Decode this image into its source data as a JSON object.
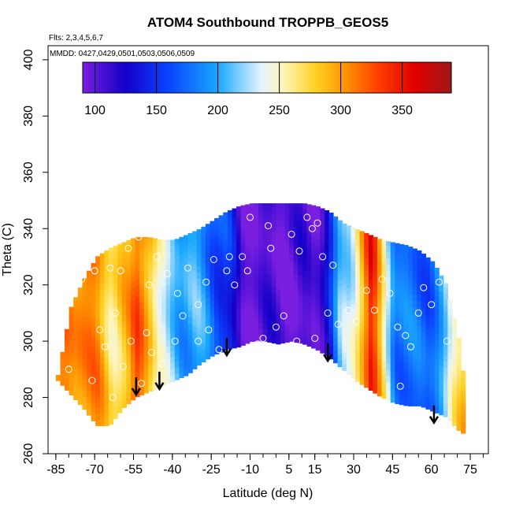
{
  "chart_data": {
    "type": "heatmap",
    "title": "ATOM4 Southbound TROPPB_GEOS5",
    "flights_note": "Flts: 2,3,4,5,6,7",
    "dates_note": "MMDD: 0427,0429,0501,0503,0506,0509",
    "xlabel": "Latitude (deg N)",
    "ylabel": "Theta (C)",
    "xlim": [
      -88,
      82
    ],
    "ylim": [
      260,
      405
    ],
    "x_ticks": [
      -85,
      -70,
      -55,
      -40,
      -25,
      -10,
      5,
      15,
      30,
      45,
      60,
      75
    ],
    "y_ticks": [
      260,
      280,
      300,
      320,
      340,
      360,
      380,
      400
    ],
    "colorbar": {
      "range": [
        90,
        390
      ],
      "ticks": [
        100,
        150,
        200,
        250,
        300,
        350
      ],
      "colors": [
        "#7a1fe0",
        "#1400c8",
        "#0a44ff",
        "#1aa8ff",
        "#e4f4ff",
        "#fff4b0",
        "#ffd020",
        "#ff9000",
        "#ff4000",
        "#e00000",
        "#a01818"
      ],
      "stops": [
        90,
        125,
        160,
        200,
        235,
        255,
        280,
        305,
        330,
        360,
        390
      ]
    },
    "arrows": [
      {
        "lat": -54,
        "theta": 281
      },
      {
        "lat": -45,
        "theta": 283
      },
      {
        "lat": -19,
        "theta": 295
      },
      {
        "lat": 20,
        "theta": 293
      },
      {
        "lat": 61,
        "theta": 271
      }
    ],
    "field_profile": {
      "lats": [
        -88,
        -82,
        -76,
        -70,
        -64,
        -58,
        -54,
        -50,
        -46,
        -42,
        -38,
        -32,
        -26,
        -20,
        -14,
        0,
        14,
        20,
        24,
        28,
        32,
        36,
        40,
        45,
        52,
        58,
        64,
        68,
        72,
        82
      ],
      "values": [
        300,
        310,
        315,
        300,
        270,
        285,
        330,
        300,
        240,
        215,
        205,
        200,
        180,
        150,
        100,
        100,
        100,
        145,
        205,
        230,
        290,
        345,
        270,
        190,
        170,
        175,
        200,
        250,
        300,
        300
      ]
    },
    "domain_shape": {
      "lats": [
        -85,
        -80,
        -75,
        -70,
        -65,
        -60,
        -55,
        -50,
        -45,
        -40,
        -35,
        -30,
        -25,
        -20,
        -15,
        -10,
        -5,
        0,
        5,
        10,
        15,
        20,
        25,
        30,
        35,
        40,
        45,
        50,
        55,
        60,
        65,
        70,
        72
      ],
      "top": [
        288,
        312,
        322,
        330,
        333,
        335,
        337,
        337,
        336,
        336,
        338,
        340,
        343,
        346,
        348,
        349,
        349,
        349,
        349,
        349,
        348,
        346,
        342,
        340,
        338,
        336,
        335,
        334,
        332,
        328,
        320,
        300,
        285
      ],
      "bottom": [
        286,
        281,
        276,
        270,
        270,
        276,
        280,
        282,
        284,
        286,
        288,
        292,
        295,
        297,
        298,
        300,
        300,
        299,
        300,
        299,
        297,
        294,
        290,
        286,
        283,
        280,
        278,
        277,
        277,
        275,
        273,
        268,
        267
      ]
    },
    "points": [
      [
        -75,
        322
      ],
      [
        -70,
        325
      ],
      [
        -68,
        304
      ],
      [
        -64,
        326
      ],
      [
        -60,
        325
      ],
      [
        -57,
        333
      ],
      [
        -53,
        337
      ],
      [
        -49,
        320
      ],
      [
        -46,
        330
      ],
      [
        -50,
        303
      ],
      [
        -42,
        324
      ],
      [
        -38,
        317
      ],
      [
        -34,
        326
      ],
      [
        -30,
        313
      ],
      [
        -27,
        321
      ],
      [
        -24,
        329
      ],
      [
        -19,
        325
      ],
      [
        -16,
        320
      ],
      [
        -13,
        330
      ],
      [
        -10,
        344
      ],
      [
        -5,
        301
      ],
      [
        -2,
        333
      ],
      [
        0,
        305
      ],
      [
        3,
        309
      ],
      [
        6,
        338
      ],
      [
        9,
        332
      ],
      [
        12,
        344
      ],
      [
        14,
        340
      ],
      [
        16,
        342
      ],
      [
        18,
        330
      ],
      [
        20,
        310
      ],
      [
        22,
        327
      ],
      [
        -62,
        310
      ],
      [
        -66,
        298
      ],
      [
        -59,
        291
      ],
      [
        -56,
        300
      ],
      [
        -44,
        292
      ],
      [
        -39,
        300
      ],
      [
        -30,
        300
      ],
      [
        -22,
        297
      ],
      [
        -7,
        299
      ],
      [
        -3,
        341
      ],
      [
        8,
        300
      ],
      [
        15,
        301
      ],
      [
        24,
        306
      ],
      [
        28,
        311
      ],
      [
        31,
        307
      ],
      [
        35,
        318
      ],
      [
        38,
        311
      ],
      [
        41,
        322
      ],
      [
        44,
        317
      ],
      [
        47,
        305
      ],
      [
        50,
        302
      ],
      [
        52,
        298
      ],
      [
        55,
        310
      ],
      [
        57,
        319
      ],
      [
        60,
        313
      ],
      [
        63,
        321
      ],
      [
        66,
        300
      ],
      [
        48,
        284
      ],
      [
        -80,
        290
      ],
      [
        -71,
        286
      ],
      [
        -63,
        280
      ],
      [
        -58,
        275
      ],
      [
        -52,
        285
      ],
      [
        -48,
        296
      ],
      [
        -36,
        309
      ],
      [
        -26,
        304
      ],
      [
        -18,
        330
      ],
      [
        -11,
        325
      ]
    ]
  }
}
